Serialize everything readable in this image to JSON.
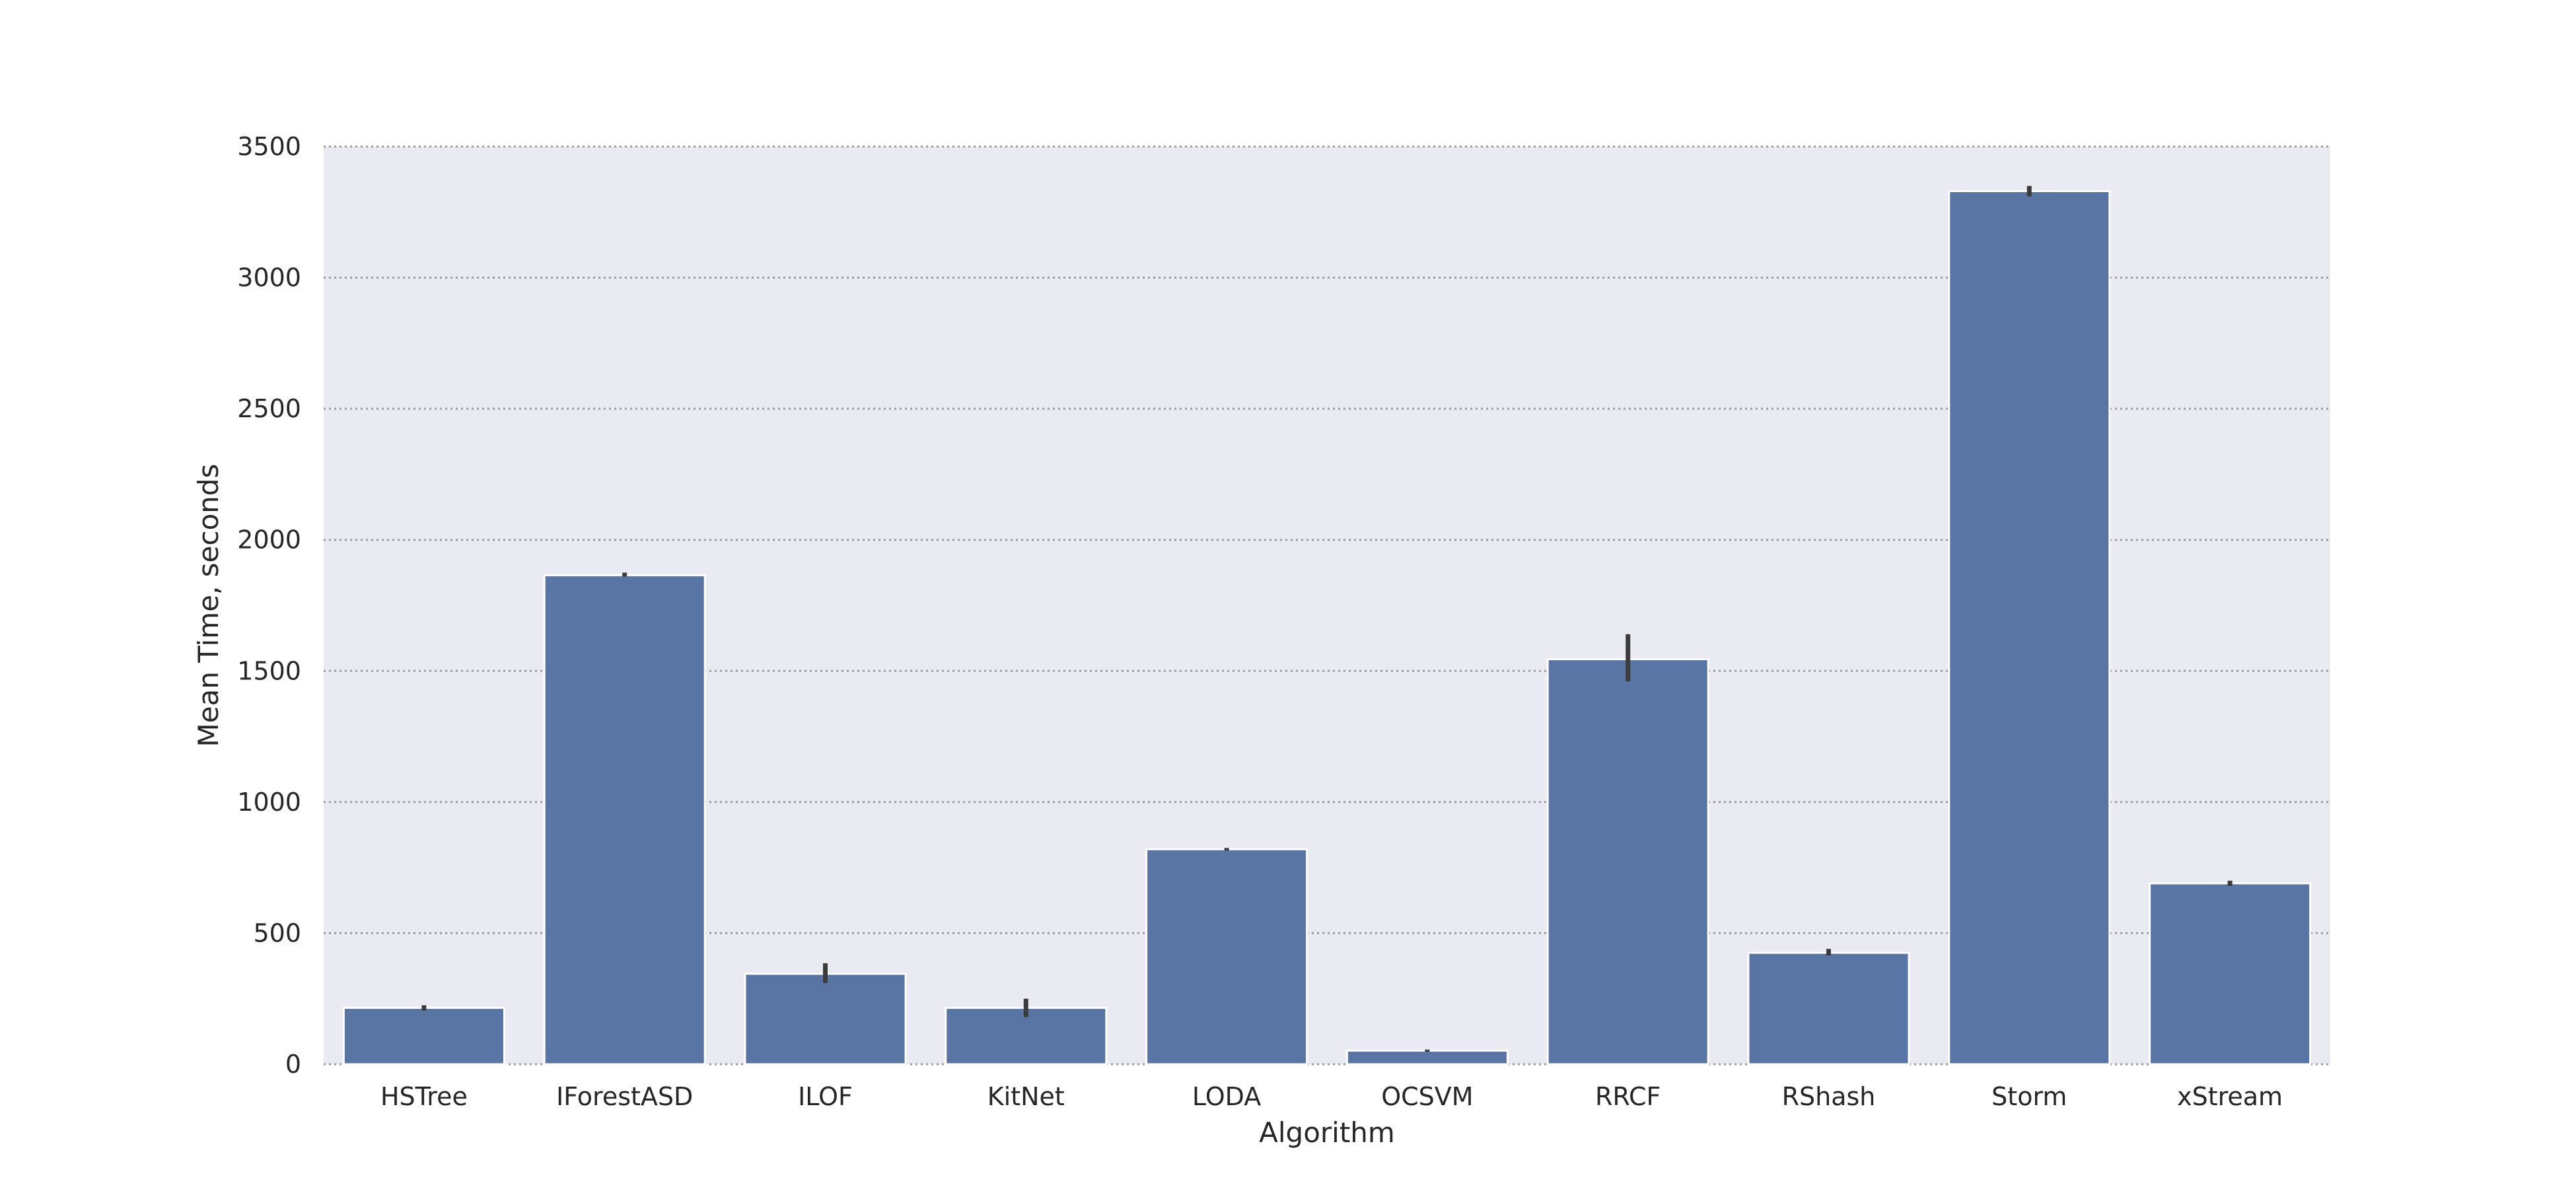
{
  "chart_data": {
    "type": "bar",
    "title": "",
    "xlabel": "Algorithm",
    "ylabel": "Mean Time, seconds",
    "categories": [
      "HSTree",
      "IForestASD",
      "ILOF",
      "KitNet",
      "LODA",
      "OCSVM",
      "RRCF",
      "RShash",
      "Storm",
      "xStream"
    ],
    "values": [
      215,
      1865,
      345,
      215,
      820,
      52,
      1545,
      425,
      3330,
      690
    ],
    "error_low": [
      205,
      1860,
      310,
      180,
      815,
      48,
      1460,
      415,
      3310,
      680
    ],
    "error_high": [
      225,
      1875,
      385,
      250,
      825,
      56,
      1640,
      440,
      3350,
      700
    ],
    "ylim": [
      0,
      3500
    ],
    "yticks": [
      0,
      500,
      1000,
      1500,
      2000,
      2500,
      3000,
      3500
    ],
    "grid": true,
    "grid_axis": "y",
    "bar_color": "#5975a4",
    "background_color": "#eaeaf2",
    "error_color": "#3b3b3b"
  }
}
